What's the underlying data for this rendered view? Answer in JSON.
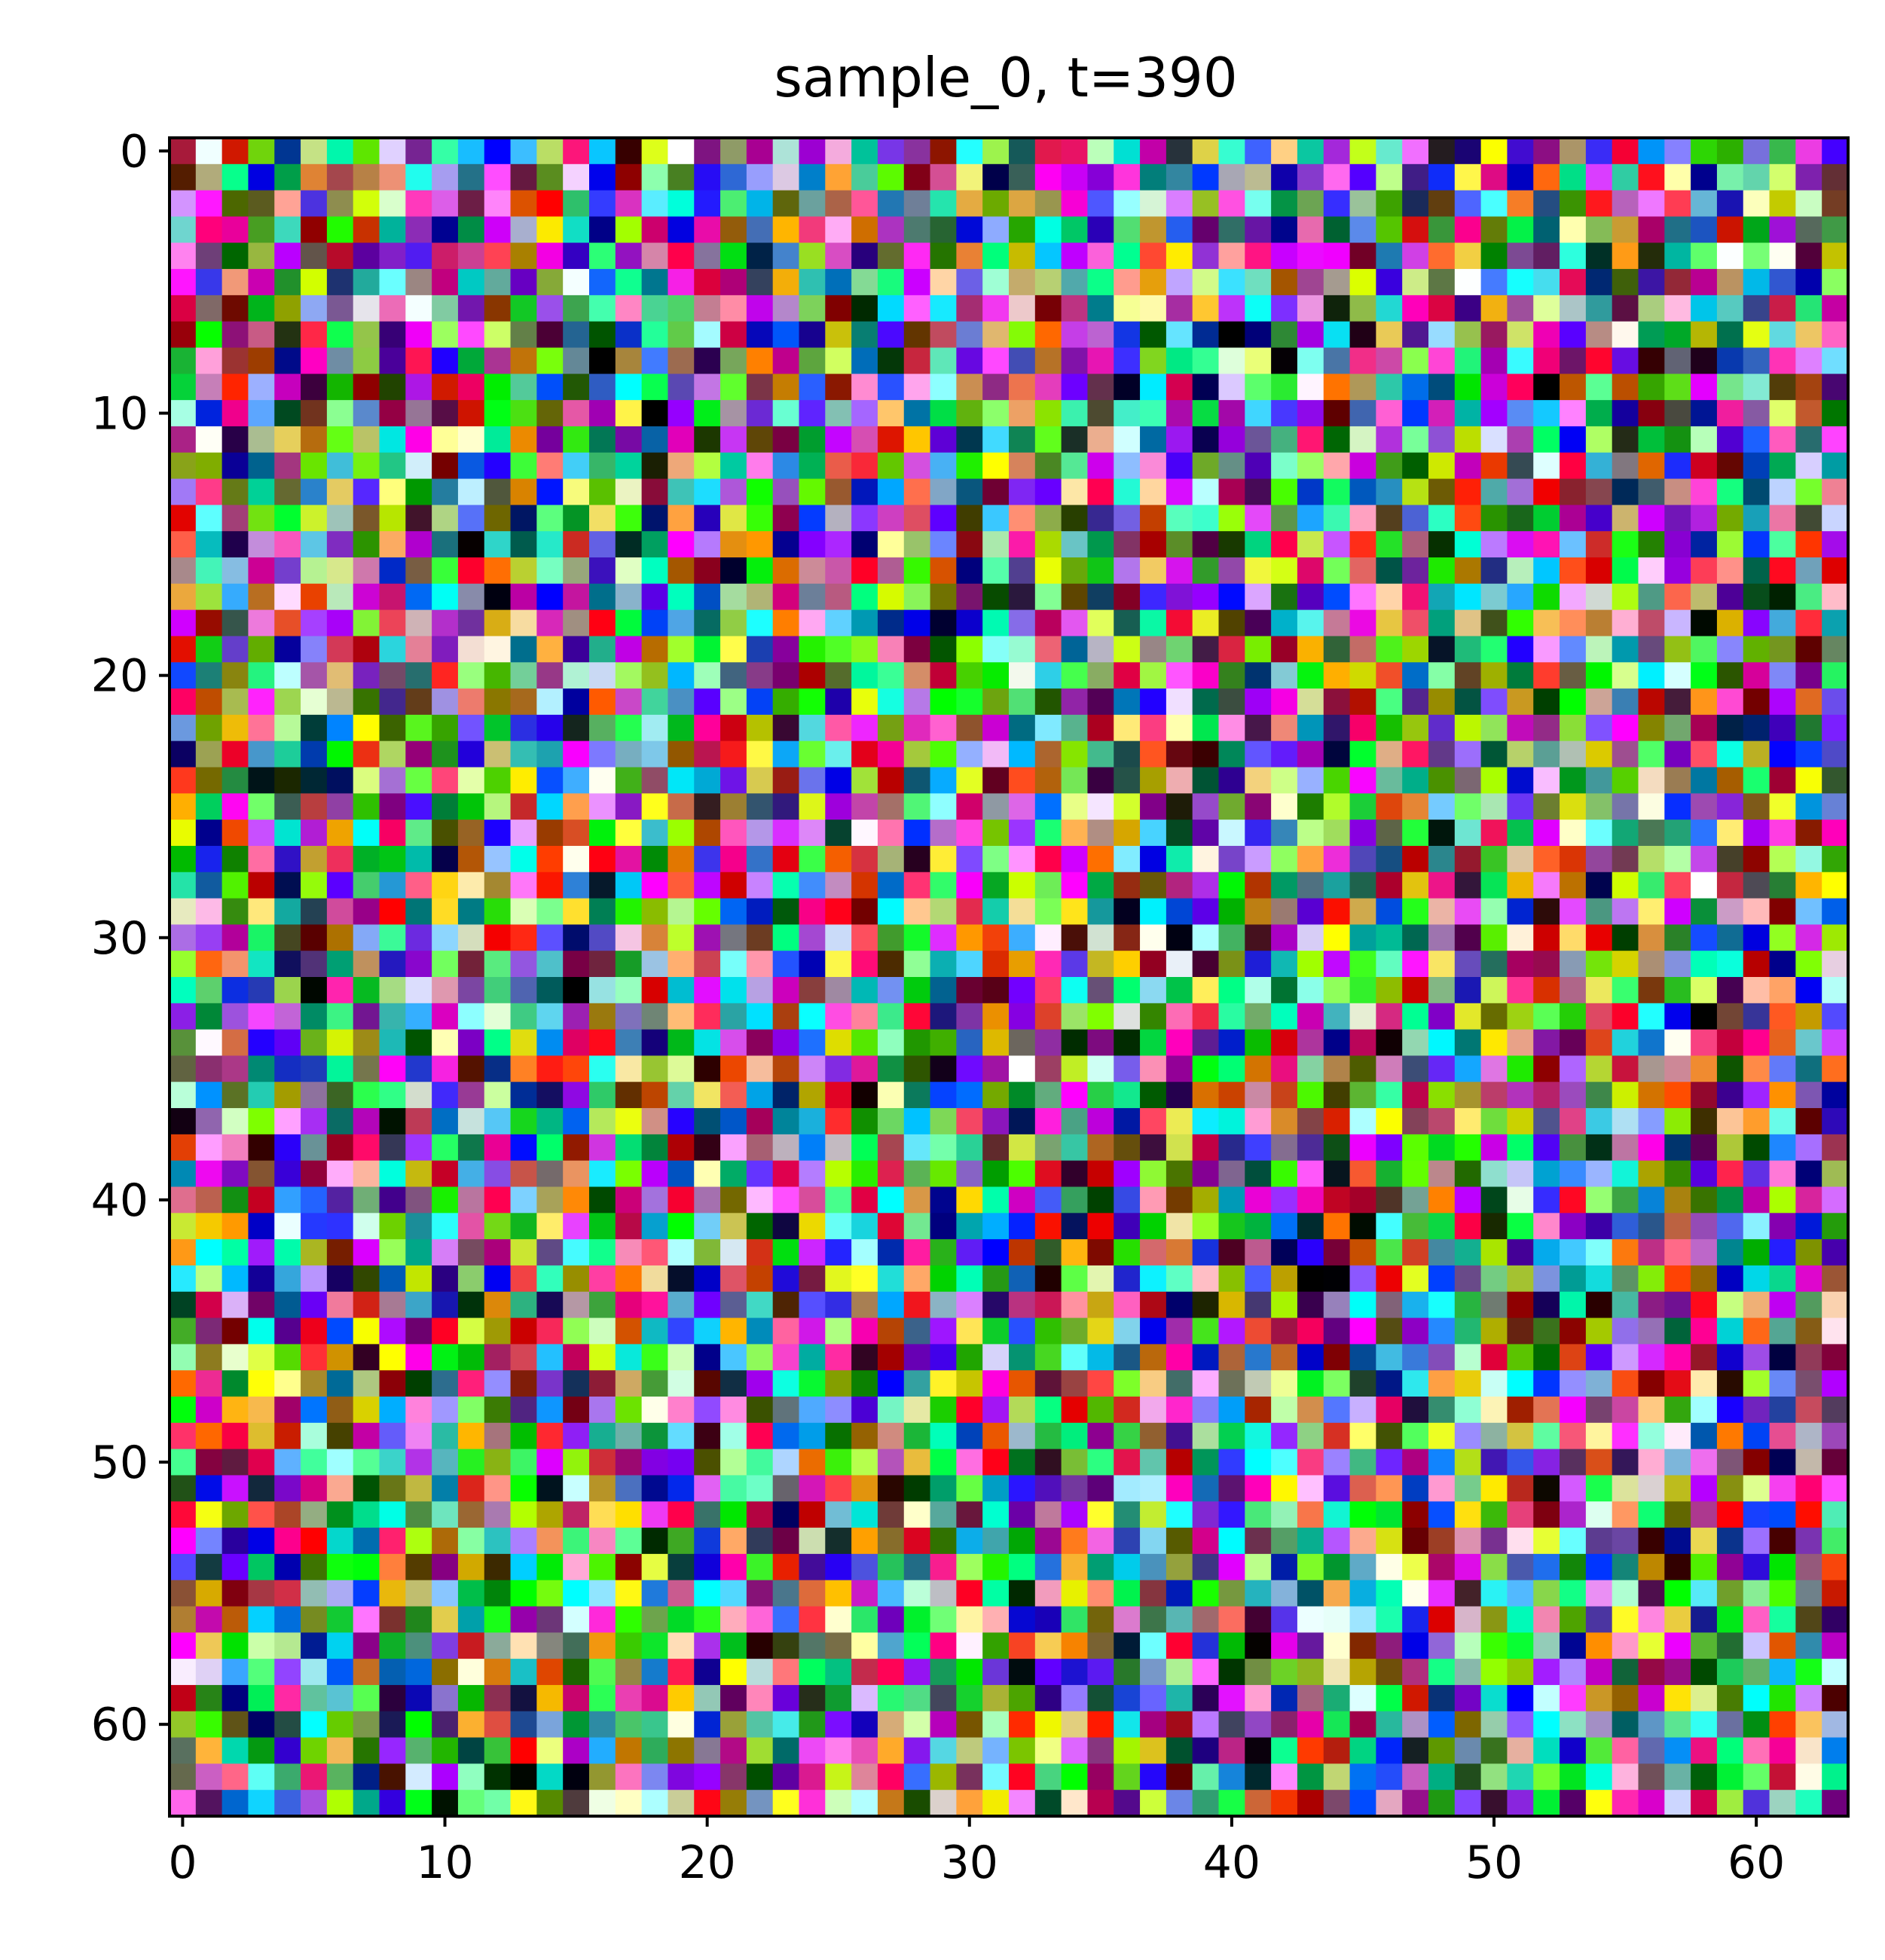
{
  "chart_data": {
    "type": "heatmap",
    "title": "sample_0, t=390",
    "xlabel": "",
    "ylabel": "",
    "image_rows": 64,
    "image_cols": 64,
    "xlim": [
      -0.5,
      63.5
    ],
    "ylim": [
      63.5,
      -0.5
    ],
    "xticks": [
      0,
      10,
      20,
      30,
      40,
      50,
      60
    ],
    "yticks": [
      0,
      10,
      20,
      30,
      40,
      50,
      60
    ],
    "grid": false,
    "legend": "none",
    "content": "64x64 RGB noise pixels (diffusion sample at timestep 390)"
  }
}
